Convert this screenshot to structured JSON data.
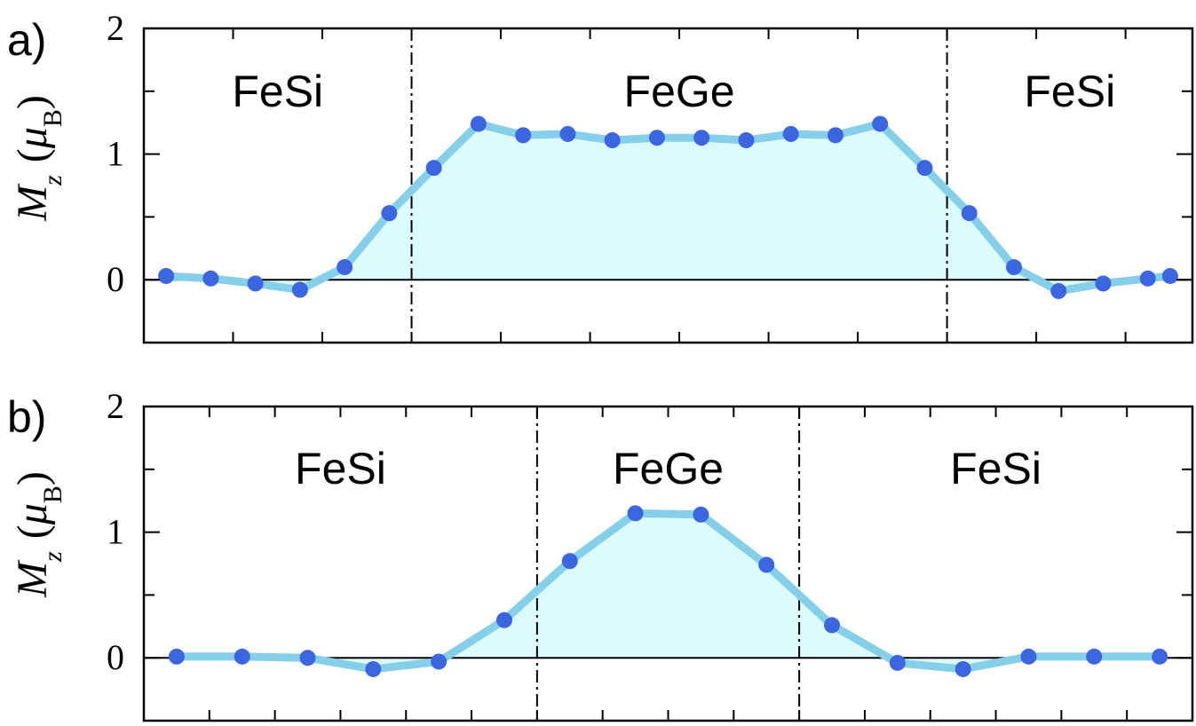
{
  "chart_data": [
    {
      "panel_label": "a)",
      "type": "line",
      "fill": "area",
      "ylabel": {
        "symbol": "M",
        "subscript": "z",
        "unit_symbol": "μ",
        "unit_subscript": "B"
      },
      "ylim": [
        -0.5,
        2
      ],
      "yticks": [
        0,
        1,
        2
      ],
      "xlim": [
        0,
        23.5
      ],
      "regions": [
        {
          "label": "FeSi",
          "from": 0,
          "to": 6
        },
        {
          "label": "FeGe",
          "from": 6,
          "to": 18
        },
        {
          "label": "FeSi",
          "from": 18,
          "to": 23.5
        }
      ],
      "boundaries": [
        6,
        18
      ],
      "series": [
        {
          "x": [
            0.5,
            1.5,
            2.5,
            3.5,
            4.5,
            5.5,
            6.5,
            7.5,
            8.5,
            9.5,
            10.5,
            11.5,
            12.5,
            13.5,
            14.5,
            15.5,
            16.5,
            17.5,
            18.5,
            19.5,
            20.5,
            21.5,
            22.5,
            23.0
          ],
          "values": [
            0.03,
            0.01,
            -0.03,
            -0.08,
            0.1,
            0.53,
            0.89,
            1.24,
            1.15,
            1.16,
            1.11,
            1.13,
            1.13,
            1.11,
            1.16,
            1.15,
            1.24,
            0.89,
            0.53,
            0.1,
            -0.09,
            -0.03,
            0.01,
            0.03
          ]
        }
      ]
    },
    {
      "panel_label": "b)",
      "type": "line",
      "fill": "area",
      "ylabel": {
        "symbol": "M",
        "subscript": "z",
        "unit_symbol": "μ",
        "unit_subscript": "B"
      },
      "ylim": [
        -0.5,
        2
      ],
      "yticks": [
        0,
        1,
        2
      ],
      "xlim": [
        0,
        16
      ],
      "regions": [
        {
          "label": "FeSi",
          "from": 0,
          "to": 6
        },
        {
          "label": "FeGe",
          "from": 6,
          "to": 10
        },
        {
          "label": "FeSi",
          "from": 10,
          "to": 16
        }
      ],
      "boundaries": [
        6,
        10
      ],
      "series": [
        {
          "x": [
            0.5,
            1.5,
            2.5,
            3.5,
            4.5,
            5.5,
            6.5,
            7.5,
            8.5,
            9.5,
            10.5,
            11.5,
            12.5,
            13.5,
            14.5,
            15.5
          ],
          "values": [
            0.01,
            0.01,
            0.0,
            -0.09,
            -0.03,
            0.3,
            0.77,
            1.15,
            1.14,
            0.74,
            0.26,
            -0.04,
            -0.09,
            0.01,
            0.01,
            0.01
          ]
        }
      ]
    }
  ],
  "colors": {
    "line": "#86cfe8",
    "fill": "#dcfbfd",
    "marker": "#3b66e0",
    "axis": "#000000"
  }
}
